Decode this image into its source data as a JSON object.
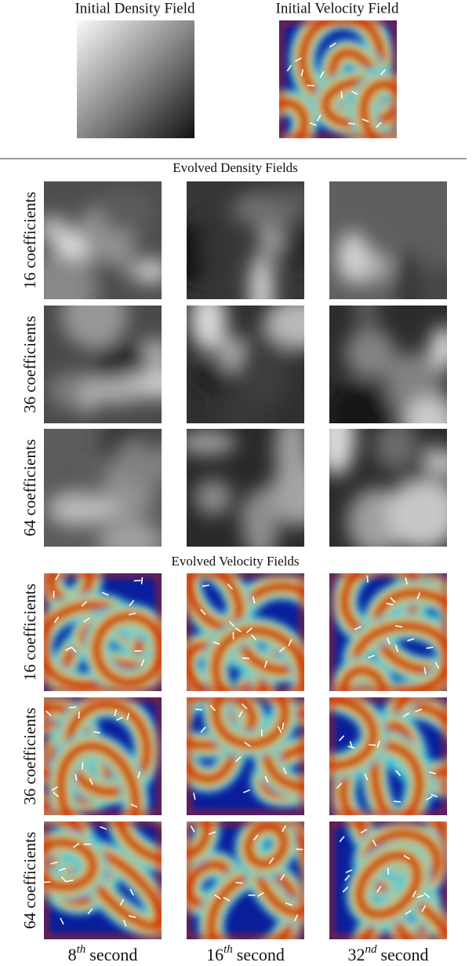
{
  "top": {
    "panels": [
      {
        "title": "Initial Density Field"
      },
      {
        "title": "Initial Velocity Field"
      }
    ]
  },
  "density": {
    "title": "Evolved Density Fields",
    "rows": [
      "16 coefficients",
      "36 coefficients",
      "64 coefficients"
    ]
  },
  "velocity": {
    "title": "Evolved Velocity Fields",
    "rows": [
      "16 coefficients",
      "36 coefficients",
      "64 coefficients"
    ]
  },
  "columns": [
    {
      "base": "8",
      "sup": "th",
      "rest": "second"
    },
    {
      "base": "16",
      "sup": "th",
      "rest": "second"
    },
    {
      "base": "32",
      "sup": "nd",
      "rest": "second"
    }
  ]
}
